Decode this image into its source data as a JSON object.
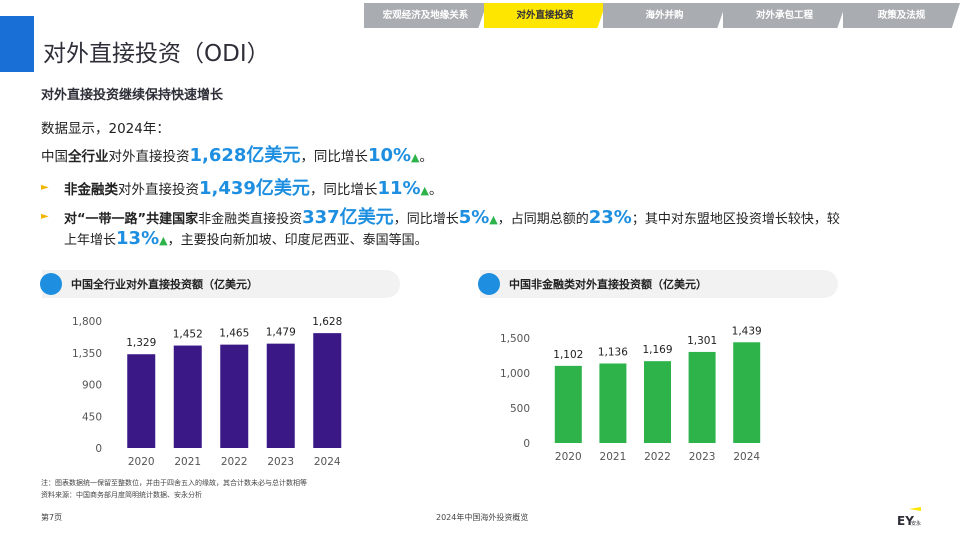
{
  "nav": {
    "tabs": [
      {
        "label": "宏观经济及地缘关系",
        "active": false
      },
      {
        "label": "对外直接投资",
        "active": true
      },
      {
        "label": "海外并购",
        "active": false
      },
      {
        "label": "对外承包工程",
        "active": false
      },
      {
        "label": "政策及法规",
        "active": false
      }
    ]
  },
  "page": {
    "title": "对外直接投资（ODI）",
    "subtitle": "对外直接投资继续保持快速增长",
    "intro": "数据显示，2024年：",
    "line1": {
      "a": "中国",
      "b": "全行业",
      "c": "对外直接投资",
      "d": "1,628亿美元",
      "e": "，同比增长",
      "f": "10%",
      "g": "。"
    },
    "line2": {
      "b": "非金融类",
      "c": "对外直接投资",
      "d": "1,439亿美元",
      "e": "，同比增长",
      "f": "11%",
      "g": "。"
    },
    "line3": {
      "b": "对“一带一路”共建国家",
      "c": "非金融类直接投资",
      "d": "337亿美元",
      "e": "，同比增长",
      "f": "5%",
      "g": "，占同期总额的",
      "h": "23%",
      "i": "；其中对东盟地区投资增长较快，较"
    },
    "line4": {
      "a": "上年增长",
      "b": "13%",
      "c": "，主要投向新加坡、印度尼西亚、泰国等国。"
    },
    "up_arrow": "▲",
    "bullet": "►"
  },
  "panels": {
    "left_title": "中国全行业对外直接投资额（亿美元）",
    "right_title": "中国非金融类对外直接投资额（亿美元）"
  },
  "chart_data": [
    {
      "type": "bar",
      "title": "中国全行业对外直接投资额（亿美元）",
      "categories": [
        "2020",
        "2021",
        "2022",
        "2023",
        "2024"
      ],
      "values": [
        1329,
        1452,
        1465,
        1479,
        1628
      ],
      "value_labels": [
        "1,329",
        "1,452",
        "1,465",
        "1,479",
        "1,628"
      ],
      "yticks": [
        "0",
        "450",
        "900",
        "1,350",
        "1,800"
      ],
      "ylim": [
        0,
        1800
      ],
      "color": "#3a1886",
      "grid": false
    },
    {
      "type": "bar",
      "title": "中国非金融类对外直接投资额（亿美元）",
      "categories": [
        "2020",
        "2021",
        "2022",
        "2023",
        "2024"
      ],
      "values": [
        1102,
        1136,
        1169,
        1301,
        1439
      ],
      "value_labels": [
        "1,102",
        "1,136",
        "1,169",
        "1,301",
        "1,439"
      ],
      "yticks": [
        "0",
        "500",
        "1,000",
        "1,500"
      ],
      "ylim": [
        0,
        1500
      ],
      "color": "#2db34a",
      "grid": false
    }
  ],
  "notes": {
    "n1": "注：图表数据统一保留至整数位，并由于四舍五入的缘故，其合计数未必与总计数相等",
    "n2": "资料来源：中国商务部月度简明统计数据、安永分析"
  },
  "footer": {
    "page": "第7页",
    "center": "2024年中国海外投资概览",
    "logo": "EY安永"
  }
}
